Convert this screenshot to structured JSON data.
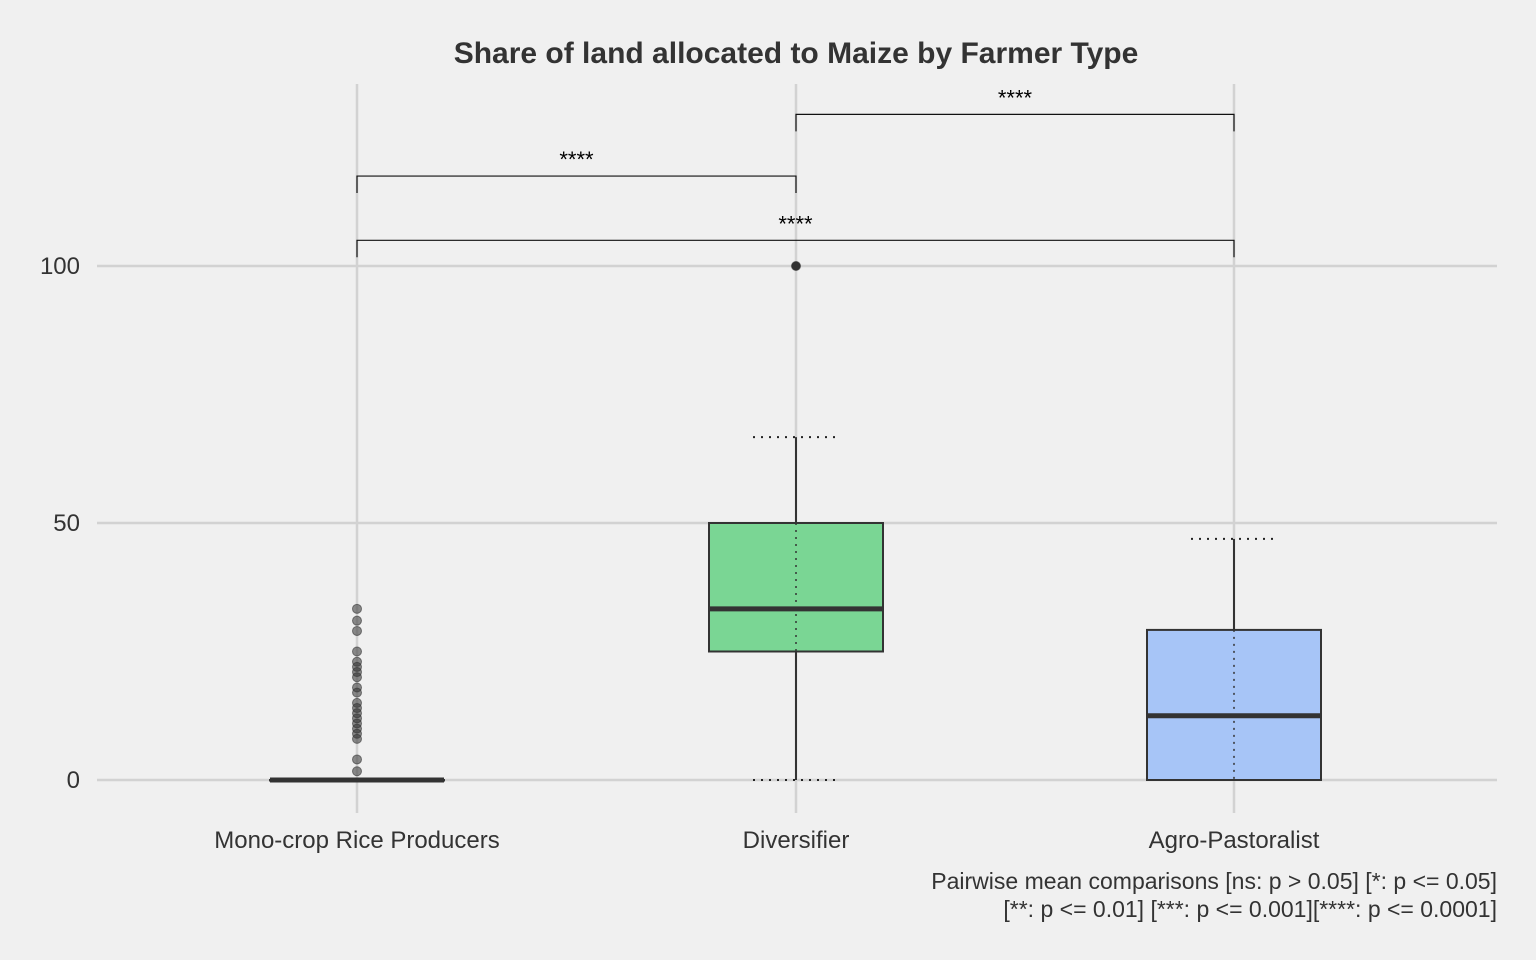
{
  "chart_data": {
    "type": "box",
    "title": "Share of land allocated to Maize by Farmer Type",
    "xlabel": "",
    "ylabel": "",
    "ylim": [
      -5,
      128
    ],
    "yticks": [
      0,
      50,
      100
    ],
    "grid": true,
    "legend": "none",
    "categories": [
      "Mono-crop Rice Producers",
      "Diversifier",
      "Agro-Pastoralist"
    ],
    "boxes": [
      {
        "category": "Mono-crop Rice Producers",
        "min": 0,
        "q1": 0,
        "median": 0,
        "q3": 0,
        "max": 0,
        "color": "#5c5c5c",
        "outliers": [
          1.7,
          4,
          8,
          9,
          10,
          11,
          12,
          13,
          14,
          15,
          17,
          18,
          20,
          21,
          22,
          23,
          25,
          29,
          31,
          33.3
        ]
      },
      {
        "category": "Diversifier",
        "min": 0,
        "q1": 25,
        "median": 33.3,
        "q3": 50,
        "max": 66.7,
        "color": "#7ad694",
        "outliers": [
          100
        ]
      },
      {
        "category": "Agro-Pastoralist",
        "min": 0,
        "q1": 0,
        "median": 12.5,
        "q3": 29.2,
        "max": 46.9,
        "color": "#a7c5f7",
        "outliers": []
      }
    ],
    "comparisons": [
      {
        "from": 0,
        "to": 1,
        "y": 117.5,
        "label": "****"
      },
      {
        "from": 1,
        "to": 2,
        "y": 129.5,
        "label": "****"
      },
      {
        "from": 0,
        "to": 2,
        "y": 105,
        "label": "****"
      }
    ],
    "caption": [
      "Pairwise mean comparisons [ns: p > 0.05] [*: p <= 0.05]",
      "[**: p <= 0.01] [***: p <= 0.001][****: p <= 0.0001]"
    ]
  }
}
